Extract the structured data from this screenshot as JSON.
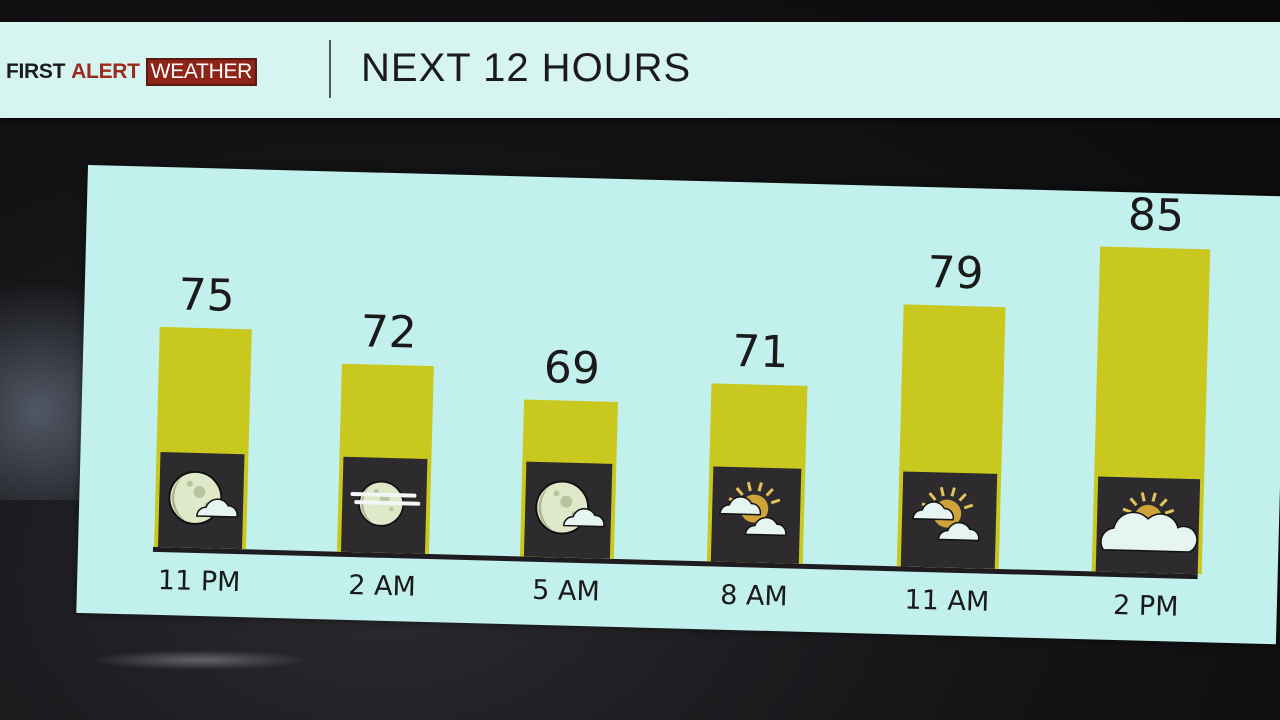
{
  "header": {
    "brand_first": "FIRST",
    "brand_alert": "ALERT",
    "brand_weather": "WEATHER",
    "title": "NEXT 12 HOURS"
  },
  "colors": {
    "bar": "#c9c81f",
    "icon_box": "#2e2b2f",
    "panel": "#c2f1ed",
    "brand_red": "#8e2418"
  },
  "chart_data": {
    "type": "bar",
    "title": "NEXT 12 HOURS",
    "categories": [
      "11 PM",
      "2 AM",
      "5 AM",
      "8 AM",
      "11 AM",
      "2 PM"
    ],
    "values": [
      75,
      72,
      69,
      71,
      79,
      85
    ],
    "value_labels": [
      "75",
      "72",
      "69",
      "71",
      "79",
      "85"
    ],
    "icons": [
      "moon-partly-cloudy-icon",
      "moon-fog-icon",
      "moon-partly-cloudy-icon",
      "partly-sunny-icon",
      "partly-sunny-icon",
      "mostly-cloudy-icon"
    ],
    "xlabel": "",
    "ylabel": "",
    "grid": false
  }
}
